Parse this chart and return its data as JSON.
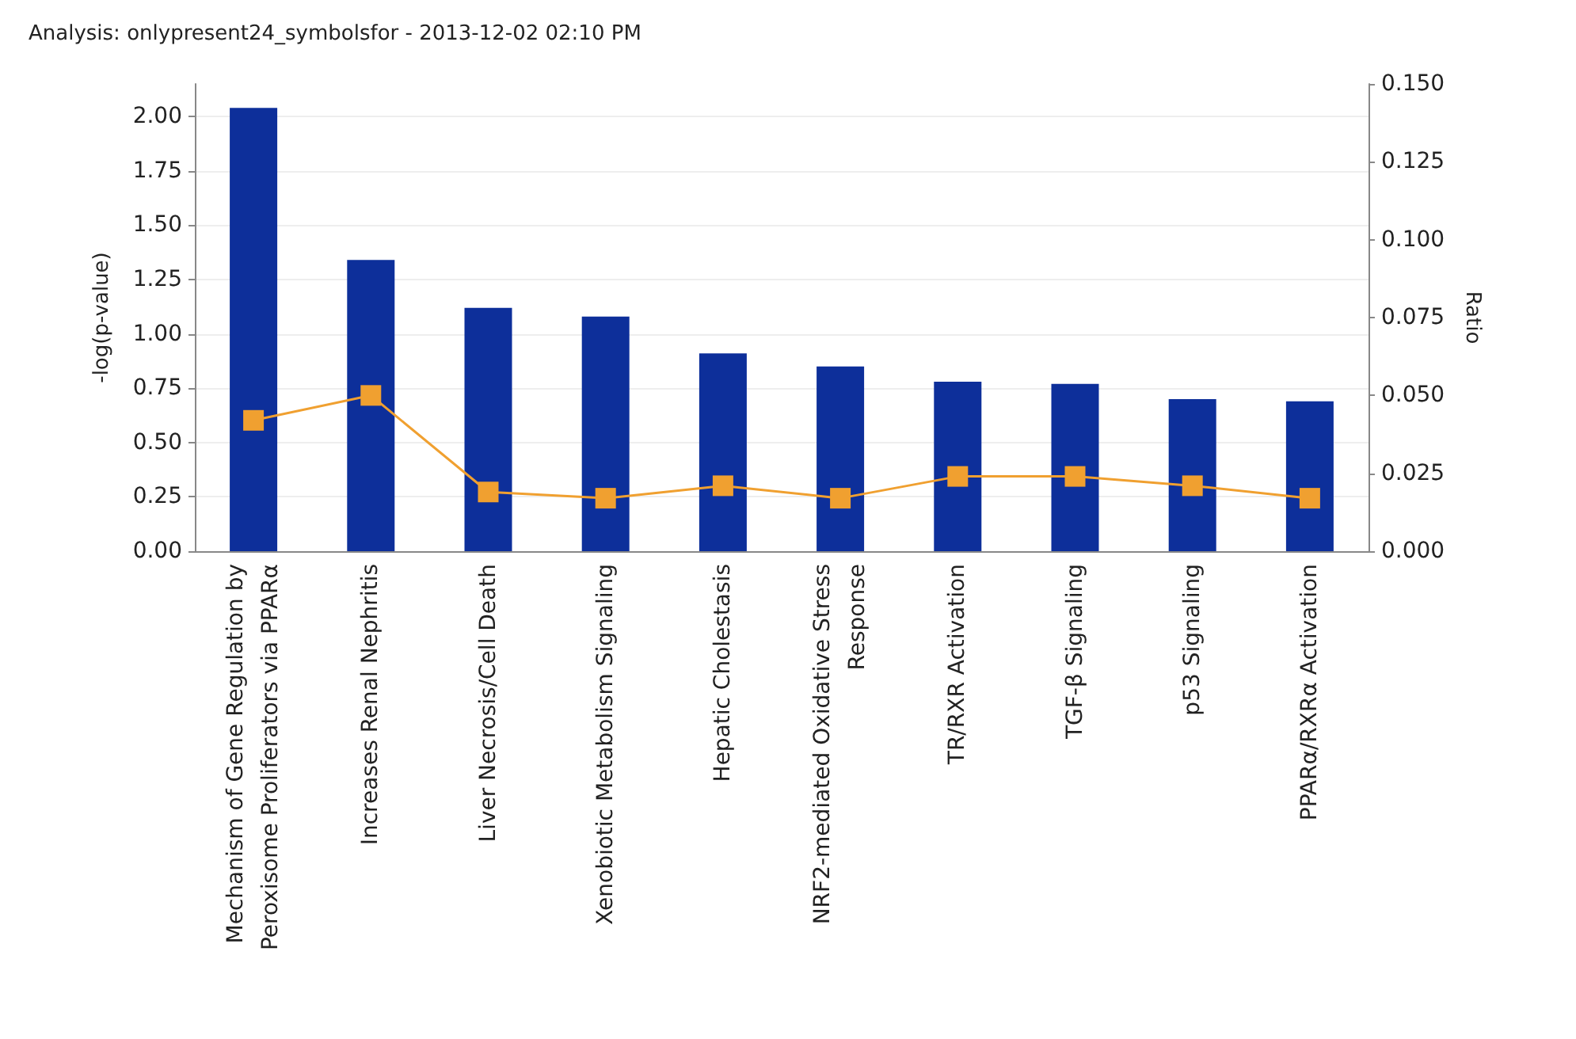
{
  "chart_data": {
    "type": "bar",
    "title": "Analysis: onlypresent24_symbolsfor - 2013-12-02 02:10 PM",
    "categories": [
      "Mechanism of Gene Regulation by Peroxisome Proliferators via PPARα",
      "Increases Renal Nephritis",
      "Liver Necrosis/Cell Death",
      "Xenobiotic Metabolism Signaling",
      "Hepatic Cholestasis",
      "NRF2-mediated Oxidative Stress Response",
      "TR/RXR Activation",
      "TGF-β Signaling",
      "p53 Signaling",
      "PPARα/RXRα Activation"
    ],
    "series": [
      {
        "color": "#0d2f9a",
        "values": [
          2.04,
          1.34,
          1.12,
          1.08,
          0.91,
          0.85,
          0.78,
          0.77,
          0.7,
          0.69
        ]
      },
      {
        "type": "line",
        "axis": "y2",
        "color": "#f0a030",
        "marker": "square",
        "values": [
          0.042,
          0.05,
          0.019,
          0.017,
          0.021,
          0.017,
          0.024,
          0.024,
          0.021,
          0.017
        ]
      }
    ],
    "ylabel": "-log(p-value)",
    "y2label": "Ratio",
    "ylim": [
      0,
      2.15
    ],
    "yticks": [
      {
        "value": 0,
        "label": "0.00"
      },
      {
        "value": 0.25,
        "label": "0.25"
      },
      {
        "value": 0.5,
        "label": "0.50"
      },
      {
        "value": 0.75,
        "label": "0.75"
      },
      {
        "value": 1,
        "label": "1.00"
      },
      {
        "value": 1.25,
        "label": "1.25"
      },
      {
        "value": 1.5,
        "label": "1.50"
      },
      {
        "value": 1.75,
        "label": "1.75"
      },
      {
        "value": 2,
        "label": "2.00"
      }
    ],
    "y2lim": [
      0,
      0.15
    ],
    "y2ticks": [
      {
        "value": 0,
        "label": "0.000"
      },
      {
        "value": 0.025,
        "label": "0.025"
      },
      {
        "value": 0.05,
        "label": "0.050"
      },
      {
        "value": 0.075,
        "label": "0.075"
      },
      {
        "value": 0.1,
        "label": "0.100"
      },
      {
        "value": 0.125,
        "label": "0.125"
      },
      {
        "value": 0.15,
        "label": "0.150"
      }
    ],
    "grid": "y"
  }
}
